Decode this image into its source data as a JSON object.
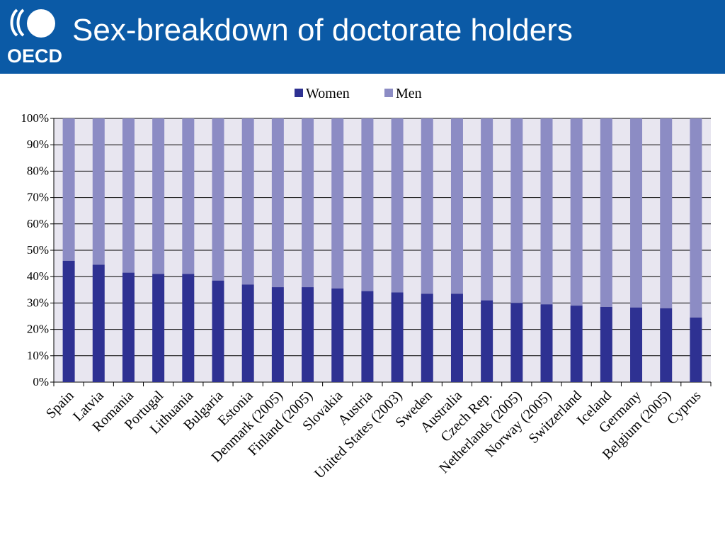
{
  "header": {
    "logo_text": "OECD",
    "title": "Sex-breakdown of doctorate holders"
  },
  "colors": {
    "header_bg": "#0b5aa6",
    "women": "#2e3192",
    "men": "#8c8cc4",
    "plot_bg": "#e8e6f0"
  },
  "chart_data": {
    "type": "bar",
    "stacked": true,
    "normalized": true,
    "title": "",
    "xlabel": "",
    "ylabel": "",
    "ylim": [
      0,
      100
    ],
    "yticks": [
      "0%",
      "10%",
      "20%",
      "30%",
      "40%",
      "50%",
      "60%",
      "70%",
      "80%",
      "90%",
      "100%"
    ],
    "grid": "horizontal",
    "legend_position": "top-center",
    "categories": [
      "Spain",
      "Latvia",
      "Romania",
      "Portugal",
      "Lithuania",
      "Bulgaria",
      "Estonia",
      "Denmark (2005)",
      "Finland (2005)",
      "Slovakia",
      "Austria",
      "United States (2003)",
      "Sweden",
      "Australia",
      "Czech Rep.",
      "Netherlands (2005)",
      "Norway (2005)",
      "Switzerland",
      "Iceland",
      "Germany",
      "Belgium (2005)",
      "Cyprus"
    ],
    "series": [
      {
        "name": "Women",
        "values": [
          46,
          44.5,
          41.5,
          41,
          41,
          38.5,
          37,
          36,
          36,
          35.5,
          34.5,
          34,
          33.5,
          33.5,
          31,
          30,
          29.5,
          29,
          28.5,
          28.3,
          28,
          24.5
        ]
      },
      {
        "name": "Men",
        "values": [
          54,
          55.5,
          58.5,
          59,
          59,
          61.5,
          63,
          64,
          64,
          64.5,
          65.5,
          66,
          66.5,
          66.5,
          69,
          70,
          70.5,
          71,
          71.5,
          71.7,
          72,
          75.5
        ]
      }
    ]
  }
}
